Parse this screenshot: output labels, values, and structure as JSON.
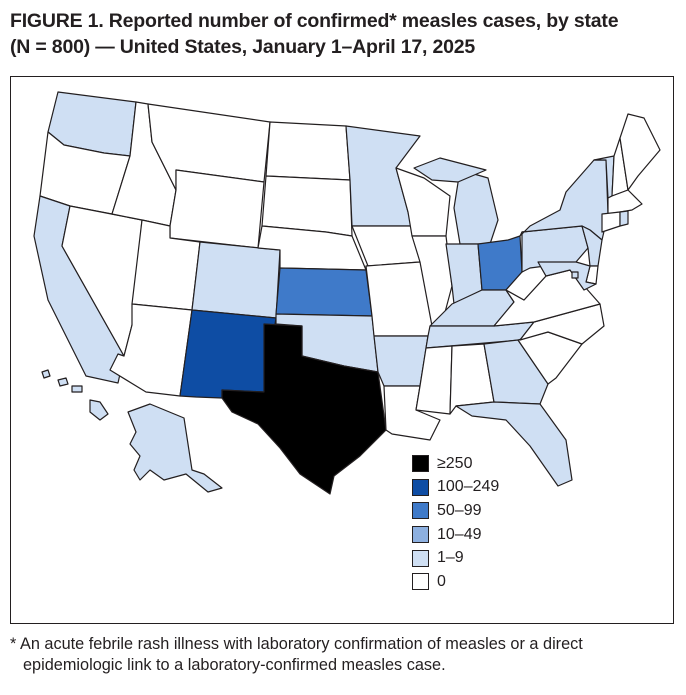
{
  "title": {
    "line1": "FIGURE 1. Reported number of confirmed* measles cases, by state",
    "line2": "(N = 800) — United States, January 1–April 17, 2025"
  },
  "legend": [
    {
      "label": "≥250",
      "color": "#000000"
    },
    {
      "label": "100–249",
      "color": "#0e4da4"
    },
    {
      "label": "50–99",
      "color": "#3f7ac9"
    },
    {
      "label": "10–49",
      "color": "#8db0e0"
    },
    {
      "label": "1–9",
      "color": "#cfdff3"
    },
    {
      "label": "0",
      "color": "#ffffff"
    }
  ],
  "states": {
    "WA": "1–9",
    "OR": "0",
    "CA": "1–9",
    "NV": "0",
    "ID": "0",
    "MT": "0",
    "WY": "0",
    "UT": "0",
    "AZ": "0",
    "CO": "1–9",
    "NM": "100–249",
    "ND": "0",
    "SD": "0",
    "NE": "0",
    "KS": "50–99",
    "OK": "1–9",
    "TX": "≥250",
    "MN": "1–9",
    "IA": "0",
    "MO": "0",
    "AR": "1–9",
    "LA": "0",
    "WI": "0",
    "IL": "0",
    "MI": "1–9",
    "IN": "1–9",
    "OH": "50–99",
    "KY": "1–9",
    "TN": "1–9",
    "MS": "0",
    "AL": "0",
    "GA": "1–9",
    "FL": "1–9",
    "SC": "0",
    "NC": "0",
    "VA": "0",
    "WV": "0",
    "PA": "1–9",
    "NY": "1–9",
    "VT": "1–9",
    "NH": "0",
    "ME": "0",
    "MA": "0",
    "RI": "1–9",
    "CT": "0",
    "NJ": "1–9",
    "DE": "0",
    "MD": "1–9",
    "DC": "1–9",
    "AK": "1–9",
    "HI": "1–9"
  },
  "footnote": {
    "line1": "* An acute febrile rash illness with laboratory confirmation of measles or a direct",
    "line2": "epidemiologic link to a laboratory-confirmed measles case."
  }
}
